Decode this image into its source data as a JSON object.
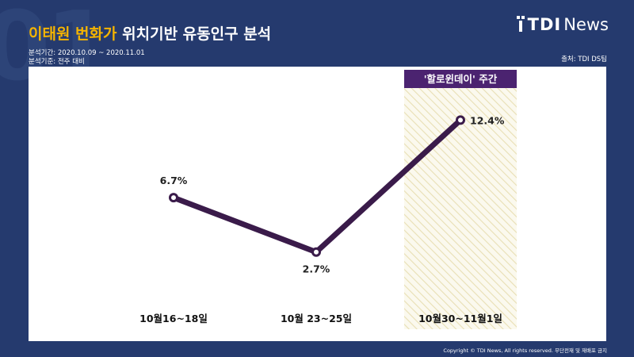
{
  "header": {
    "title_highlight": "이태원 번화가",
    "title_rest": "위치기반 유동인구 분석",
    "period": "분석기간: 2020.10.09 ~ 2020.11.01",
    "basis": "분석기준: 전주 대비",
    "source": "출처: TDI DS팀",
    "bg_number": "01"
  },
  "logo": {
    "tdi": "TDI",
    "news": "News"
  },
  "footer": {
    "copyright": "Copyright © TDI News, All rights reserved. 무단전재 및 재배포 금지"
  },
  "colors": {
    "background": "#253a6e",
    "title_highlight": "#f5b400",
    "line": "#3a1b4a",
    "badge": "#4b2370",
    "hatch": "#e8dfb4",
    "hatch_bg": "#fbf9ee"
  },
  "chart_data": {
    "type": "line",
    "categories": [
      "10월16~18일",
      "10월 23~25일",
      "10월30~11월1일"
    ],
    "values": [
      6.7,
      2.7,
      12.4
    ],
    "data_labels": [
      "6.7%",
      "2.7%",
      "12.4%"
    ],
    "highlight": {
      "category_index": 2,
      "label": "'할로윈데이' 주간"
    },
    "ylim": [
      0,
      14
    ],
    "grid": false
  }
}
